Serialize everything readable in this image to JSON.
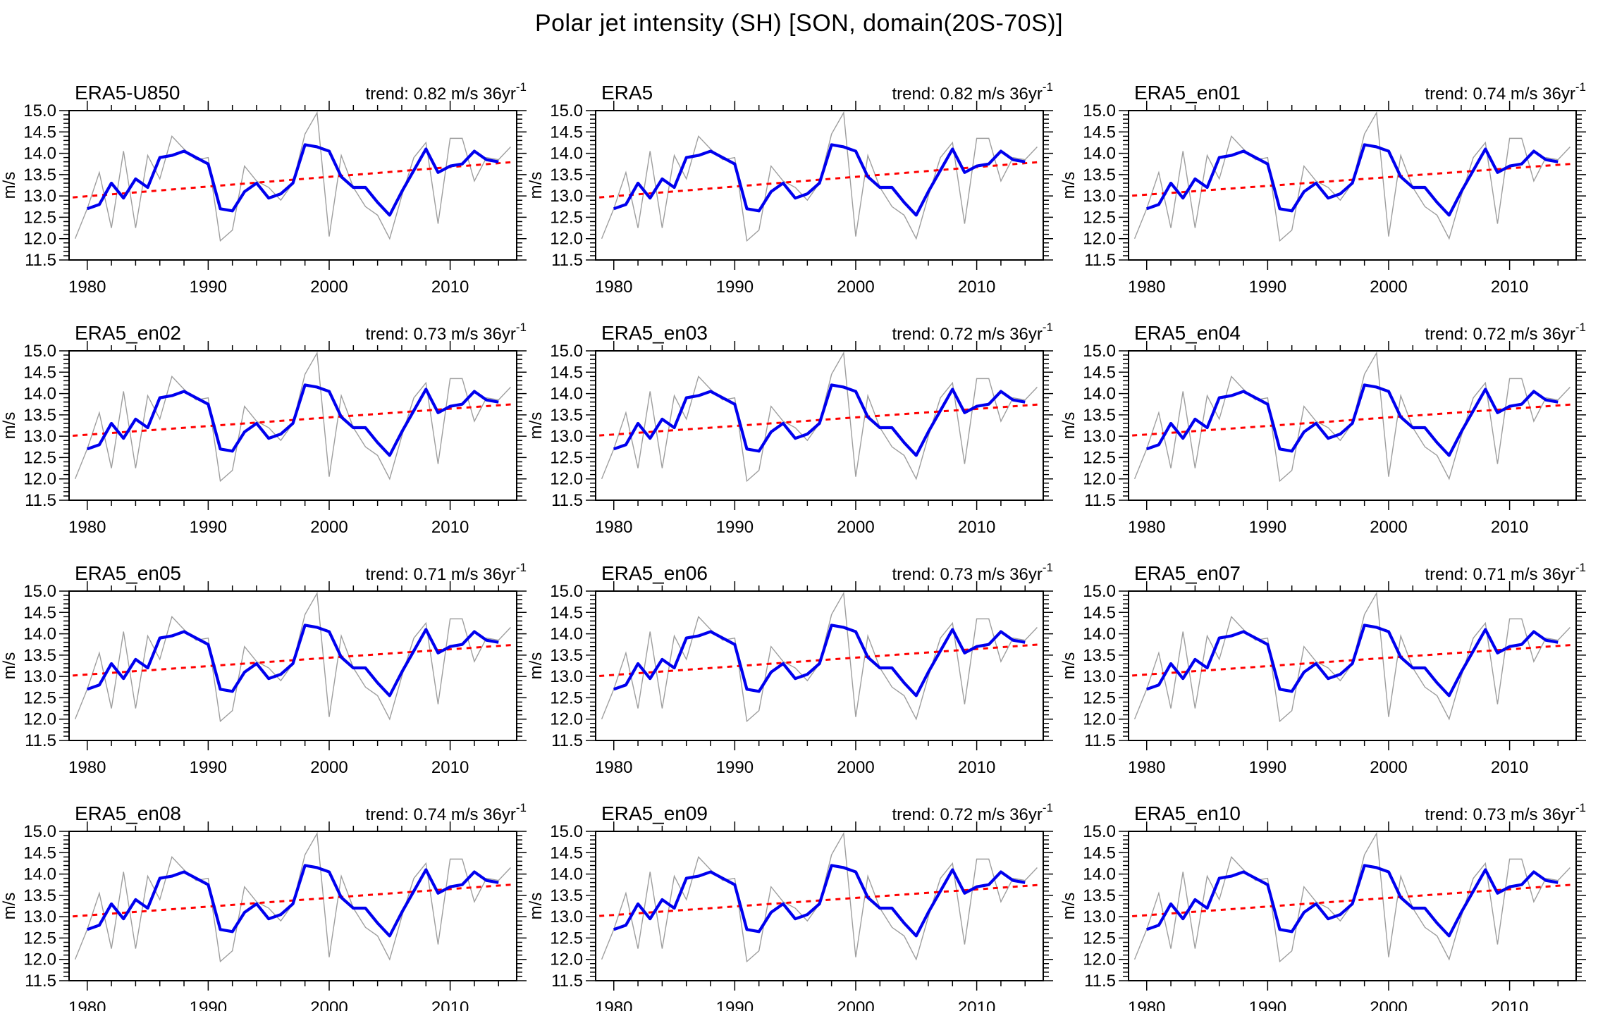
{
  "title": "Polar jet intensity (SH) [SON, domain(20S-70S)]",
  "labels": {
    "trend_sup": "-1"
  },
  "y_axis": {
    "label": "m/s",
    "tick_labels": [
      "15.0",
      "14.5",
      "14.0",
      "13.5",
      "13.0",
      "12.5",
      "12.0",
      "11.5"
    ],
    "tick_values": [
      15.0,
      14.5,
      14.0,
      13.5,
      13.0,
      12.5,
      12.0,
      11.5
    ],
    "minor_step": 0.1
  },
  "x_axis": {
    "tick_labels": [
      "1980",
      "1990",
      "2000",
      "2010"
    ],
    "tick_values": [
      1980,
      1990,
      2000,
      2010
    ],
    "minor_step": 2,
    "range": [
      1978.5,
      2015.5
    ]
  },
  "colors": {
    "annual": "#9e9e9e",
    "smoothed": "#0000ee",
    "trend": "#ff0000",
    "frame": "#000000"
  },
  "chart_data": {
    "type": "line",
    "title": "Polar jet intensity (SH) [SON, domain(20S-70S)]",
    "ylabel": "m/s",
    "ylim": [
      11.5,
      15.0
    ],
    "xlim": [
      1978.5,
      2015.5
    ],
    "x": [
      1979,
      1980,
      1981,
      1982,
      1983,
      1984,
      1985,
      1986,
      1987,
      1988,
      1989,
      1990,
      1991,
      1992,
      1993,
      1994,
      1995,
      1996,
      1997,
      1998,
      1999,
      2000,
      2001,
      2002,
      2003,
      2004,
      2005,
      2006,
      2007,
      2008,
      2009,
      2010,
      2011,
      2012,
      2013,
      2014,
      2015
    ],
    "series": [
      {
        "name": "annual",
        "x_start": 1979,
        "values": [
          12.0,
          12.7,
          13.55,
          12.25,
          14.05,
          12.25,
          13.95,
          13.4,
          14.4,
          14.1,
          13.85,
          13.9,
          11.95,
          12.2,
          13.7,
          13.35,
          13.2,
          12.9,
          13.3,
          14.45,
          14.95,
          12.05,
          13.95,
          13.2,
          12.75,
          12.55,
          12.0,
          13.0,
          13.9,
          14.25,
          12.35,
          14.35,
          14.35,
          13.35,
          13.9,
          13.85,
          14.15
        ]
      },
      {
        "name": "smoothed",
        "x_start": 1980,
        "values": [
          12.7,
          12.8,
          13.3,
          12.95,
          13.4,
          13.2,
          13.9,
          13.95,
          14.05,
          13.9,
          13.75,
          12.7,
          12.65,
          13.1,
          13.3,
          12.95,
          13.05,
          13.3,
          14.2,
          14.15,
          14.05,
          13.45,
          13.2,
          13.2,
          12.85,
          12.55,
          13.1,
          13.6,
          14.1,
          13.55,
          13.7,
          13.75,
          14.05,
          13.85,
          13.8
        ]
      },
      {
        "name": "linear-trend",
        "style": "dashed",
        "mid_year": 1997,
        "mid_value": 13.38,
        "units": "m/s per 36yr"
      }
    ],
    "panels": [
      {
        "label": "ERA5-U850",
        "trend_value": 0.82,
        "trend_label": "trend: 0.82 m/s 36yr"
      },
      {
        "label": "ERA5",
        "trend_value": 0.82,
        "trend_label": "trend: 0.82 m/s 36yr"
      },
      {
        "label": "ERA5_en01",
        "trend_value": 0.74,
        "trend_label": "trend: 0.74 m/s 36yr"
      },
      {
        "label": "ERA5_en02",
        "trend_value": 0.73,
        "trend_label": "trend: 0.73 m/s 36yr"
      },
      {
        "label": "ERA5_en03",
        "trend_value": 0.72,
        "trend_label": "trend: 0.72 m/s 36yr"
      },
      {
        "label": "ERA5_en04",
        "trend_value": 0.72,
        "trend_label": "trend: 0.72 m/s 36yr"
      },
      {
        "label": "ERA5_en05",
        "trend_value": 0.71,
        "trend_label": "trend: 0.71 m/s 36yr"
      },
      {
        "label": "ERA5_en06",
        "trend_value": 0.73,
        "trend_label": "trend: 0.73 m/s 36yr"
      },
      {
        "label": "ERA5_en07",
        "trend_value": 0.71,
        "trend_label": "trend: 0.71 m/s 36yr"
      },
      {
        "label": "ERA5_en08",
        "trend_value": 0.74,
        "trend_label": "trend: 0.74 m/s 36yr"
      },
      {
        "label": "ERA5_en09",
        "trend_value": 0.72,
        "trend_label": "trend: 0.72 m/s 36yr"
      },
      {
        "label": "ERA5_en10",
        "trend_value": 0.73,
        "trend_label": "trend: 0.73 m/s 36yr"
      }
    ]
  }
}
